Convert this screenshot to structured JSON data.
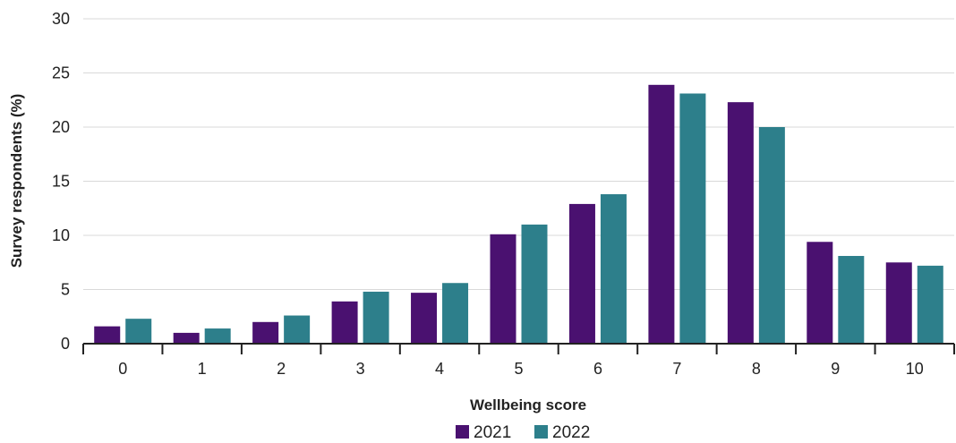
{
  "chart_data": {
    "type": "bar",
    "xlabel": "Wellbeing score",
    "ylabel": "Survey respondents (%)",
    "categories": [
      "0",
      "1",
      "2",
      "3",
      "4",
      "5",
      "6",
      "7",
      "8",
      "9",
      "10"
    ],
    "ylim": [
      0,
      30
    ],
    "yticks": [
      "0",
      "5",
      "10",
      "15",
      "20",
      "25",
      "30"
    ],
    "grid": true,
    "legend_position": "bottom-center",
    "series": [
      {
        "name": "2021",
        "color": "#4a1170",
        "values": [
          1.6,
          1.0,
          2.0,
          3.9,
          4.7,
          10.1,
          12.9,
          23.9,
          22.3,
          9.4,
          7.5
        ]
      },
      {
        "name": "2022",
        "color": "#2d7f8b",
        "values": [
          2.3,
          1.4,
          2.6,
          4.8,
          5.6,
          11.0,
          13.8,
          23.1,
          20.0,
          8.1,
          7.2
        ]
      }
    ]
  }
}
